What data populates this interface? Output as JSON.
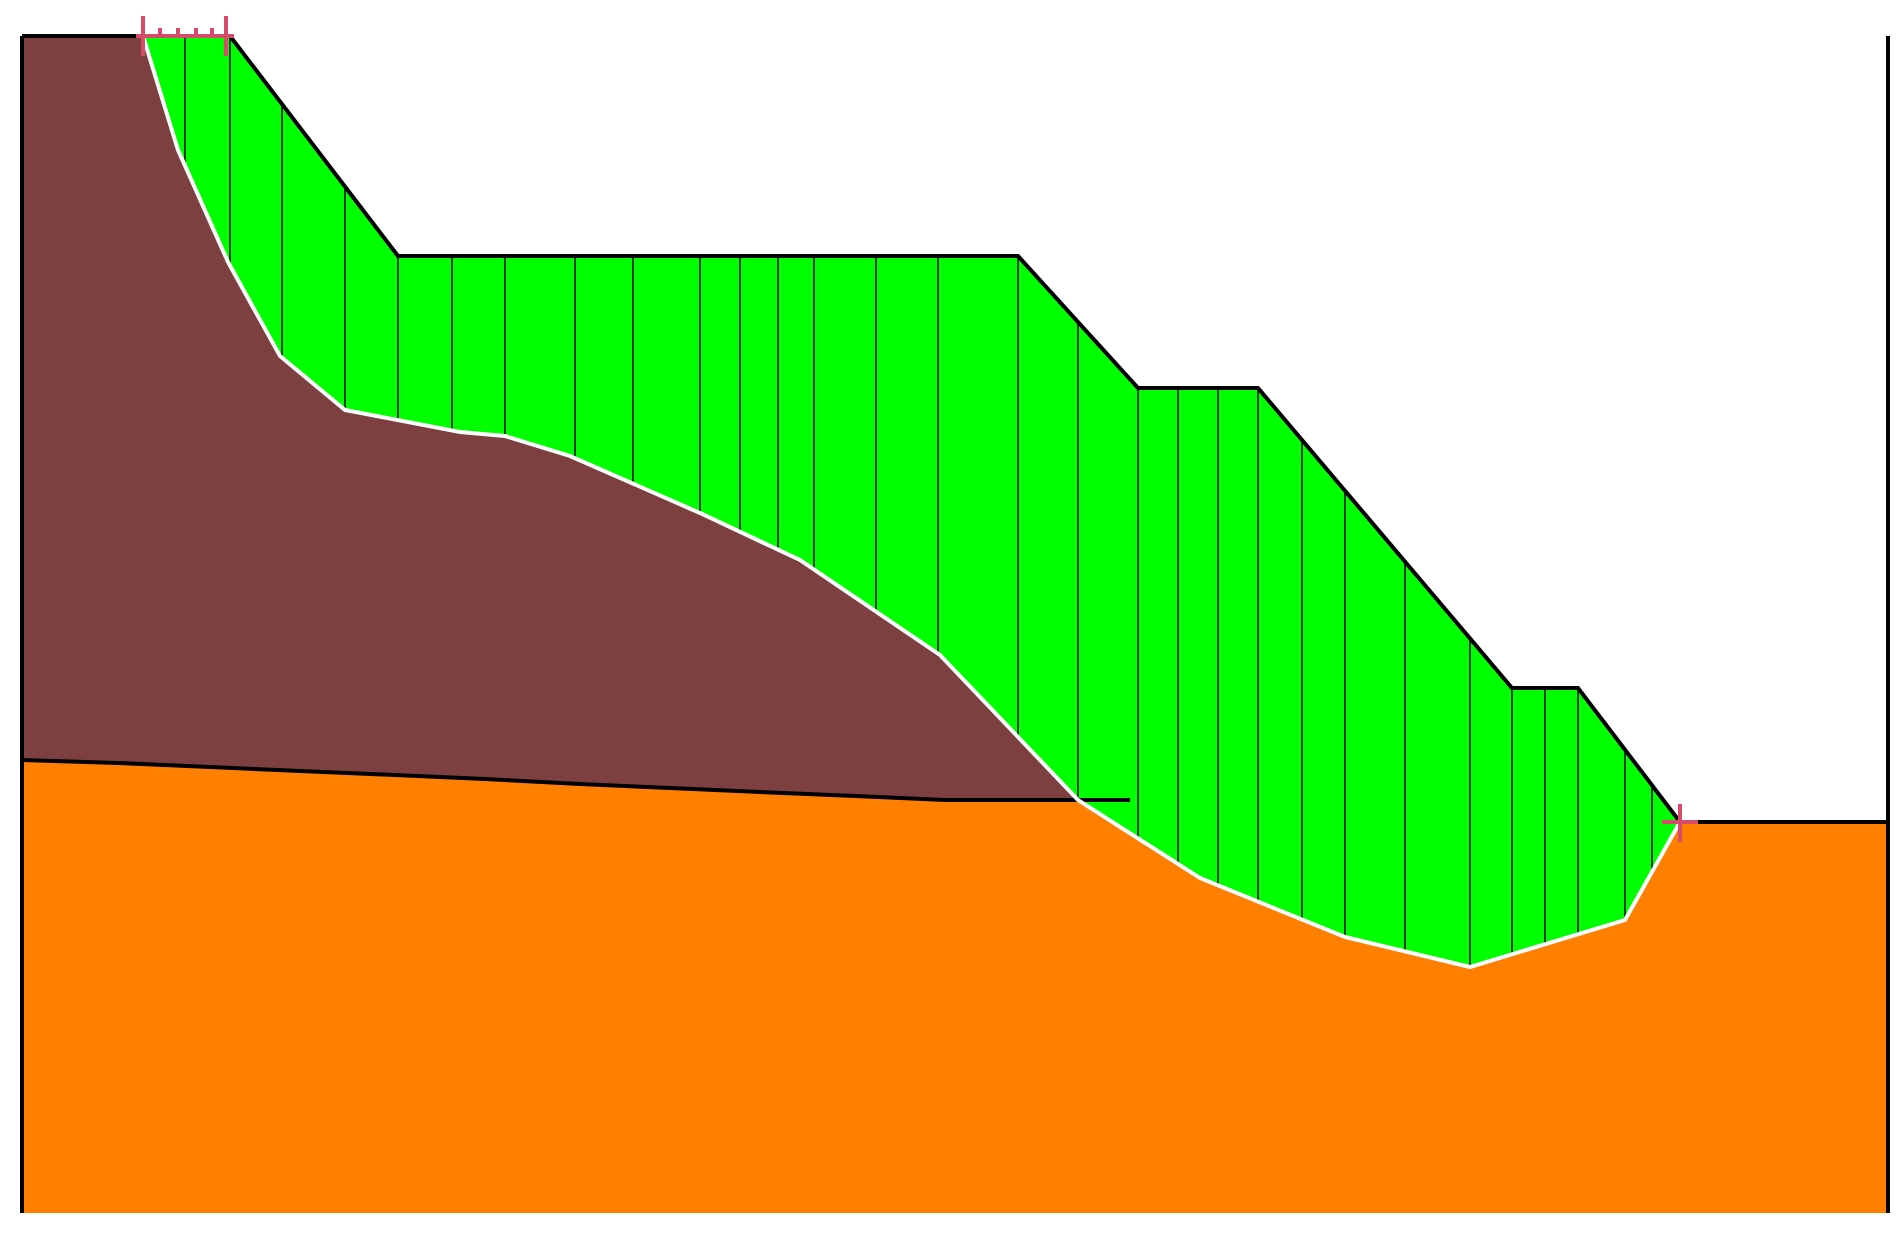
{
  "diagram": {
    "type": "slope-stability-section",
    "colors": {
      "background": "#ffffff",
      "upper_layer": "#7e3f40",
      "lower_layer": "#ff8000",
      "sliding_mass": "#00ff00",
      "slip_surface": "#ffffff",
      "outline": "#000000",
      "slice_lines": "#000000",
      "markers": "#d64a6a"
    },
    "layers": [
      {
        "name": "upper-layer",
        "fill": "upper_layer"
      },
      {
        "name": "lower-layer",
        "fill": "lower_layer"
      }
    ],
    "sliding_mass": {
      "slice_count": 30
    },
    "markers": [
      {
        "name": "entry-marker"
      },
      {
        "name": "exit-marker"
      }
    ]
  }
}
